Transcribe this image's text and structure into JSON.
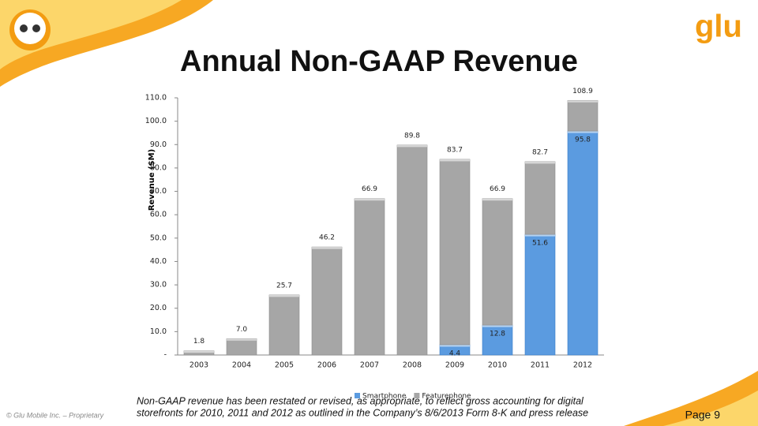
{
  "title": "Annual Non-GAAP Revenue",
  "logo": "glu",
  "chart_data": {
    "type": "stacked_bar",
    "y_label": "Revenue ($M)",
    "categories": [
      "2003",
      "2004",
      "2005",
      "2006",
      "2007",
      "2008",
      "2009",
      "2010",
      "2011",
      "2012"
    ],
    "series": [
      {
        "name": "Smartphone",
        "color": "#5b9be0",
        "values": [
          null,
          null,
          null,
          null,
          null,
          null,
          4.4,
          12.8,
          51.6,
          95.8
        ]
      },
      {
        "name": "Featurephone",
        "color": "#a6a6a6",
        "values": [
          1.8,
          7.0,
          25.7,
          46.2,
          66.9,
          89.8,
          79.3,
          54.1,
          31.1,
          13.1
        ]
      }
    ],
    "totals": [
      1.8,
      7.0,
      25.7,
      46.2,
      66.9,
      89.8,
      83.7,
      66.9,
      82.7,
      108.9
    ],
    "total_labels": [
      "1.8",
      "7.0",
      "25.7",
      "46.2",
      "66.9",
      "89.8",
      "83.7",
      "66.9",
      "82.7",
      "108.9"
    ],
    "ylim": [
      0,
      110
    ],
    "yticks": [
      {
        "value": 0,
        "label": "-"
      },
      {
        "value": 10,
        "label": "10.0"
      },
      {
        "value": 20,
        "label": "20.0"
      },
      {
        "value": 30,
        "label": "30.0"
      },
      {
        "value": 40,
        "label": "40.0"
      },
      {
        "value": 50,
        "label": "50.0"
      },
      {
        "value": 60,
        "label": "60.0"
      },
      {
        "value": 70,
        "label": "70.0"
      },
      {
        "value": 80,
        "label": "80.0"
      },
      {
        "value": 90,
        "label": "90.0"
      },
      {
        "value": 100,
        "label": "100.0"
      },
      {
        "value": 110,
        "label": "110.0"
      }
    ],
    "legend": "bottom"
  },
  "footnote": [
    "Non-GAAP revenue has been restated or revised, as appropriate, to reflect gross accounting for digital",
    "storefronts for 2010, 2011 and 2012 as outlined in the Company’s 8/6/2013 Form 8-K and press release"
  ],
  "copyright": "© Glu Mobile Inc. – Proprietary",
  "page": "Page 9"
}
